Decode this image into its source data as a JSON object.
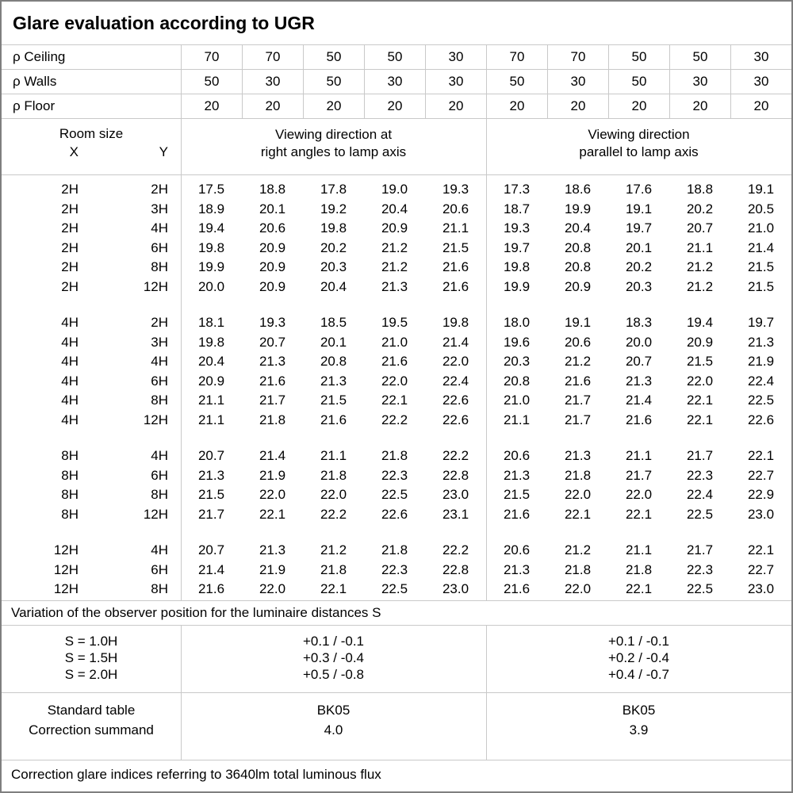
{
  "title": "Glare evaluation according to UGR",
  "reflectance_rows": [
    {
      "label": "ρ Ceiling",
      "values": [
        "70",
        "70",
        "50",
        "50",
        "30",
        "70",
        "70",
        "50",
        "50",
        "30"
      ]
    },
    {
      "label": "ρ Walls",
      "values": [
        "50",
        "30",
        "50",
        "30",
        "30",
        "50",
        "30",
        "50",
        "30",
        "30"
      ]
    },
    {
      "label": "ρ Floor",
      "values": [
        "20",
        "20",
        "20",
        "20",
        "20",
        "20",
        "20",
        "20",
        "20",
        "20"
      ]
    }
  ],
  "header": {
    "room_size_label": "Room size",
    "x_label": "X",
    "y_label": "Y",
    "left_heading_line1": "Viewing direction at",
    "left_heading_line2": "right angles to lamp axis",
    "right_heading_line1": "Viewing direction",
    "right_heading_line2": "parallel to lamp axis"
  },
  "blocks": [
    {
      "rows": [
        {
          "x": "2H",
          "y": "2H",
          "left": [
            "17.5",
            "18.8",
            "17.8",
            "19.0",
            "19.3"
          ],
          "right": [
            "17.3",
            "18.6",
            "17.6",
            "18.8",
            "19.1"
          ]
        },
        {
          "x": "2H",
          "y": "3H",
          "left": [
            "18.9",
            "20.1",
            "19.2",
            "20.4",
            "20.6"
          ],
          "right": [
            "18.7",
            "19.9",
            "19.1",
            "20.2",
            "20.5"
          ]
        },
        {
          "x": "2H",
          "y": "4H",
          "left": [
            "19.4",
            "20.6",
            "19.8",
            "20.9",
            "21.1"
          ],
          "right": [
            "19.3",
            "20.4",
            "19.7",
            "20.7",
            "21.0"
          ]
        },
        {
          "x": "2H",
          "y": "6H",
          "left": [
            "19.8",
            "20.9",
            "20.2",
            "21.2",
            "21.5"
          ],
          "right": [
            "19.7",
            "20.8",
            "20.1",
            "21.1",
            "21.4"
          ]
        },
        {
          "x": "2H",
          "y": "8H",
          "left": [
            "19.9",
            "20.9",
            "20.3",
            "21.2",
            "21.6"
          ],
          "right": [
            "19.8",
            "20.8",
            "20.2",
            "21.2",
            "21.5"
          ]
        },
        {
          "x": "2H",
          "y": "12H",
          "left": [
            "20.0",
            "20.9",
            "20.4",
            "21.3",
            "21.6"
          ],
          "right": [
            "19.9",
            "20.9",
            "20.3",
            "21.2",
            "21.5"
          ]
        }
      ]
    },
    {
      "rows": [
        {
          "x": "4H",
          "y": "2H",
          "left": [
            "18.1",
            "19.3",
            "18.5",
            "19.5",
            "19.8"
          ],
          "right": [
            "18.0",
            "19.1",
            "18.3",
            "19.4",
            "19.7"
          ]
        },
        {
          "x": "4H",
          "y": "3H",
          "left": [
            "19.8",
            "20.7",
            "20.1",
            "21.0",
            "21.4"
          ],
          "right": [
            "19.6",
            "20.6",
            "20.0",
            "20.9",
            "21.3"
          ]
        },
        {
          "x": "4H",
          "y": "4H",
          "left": [
            "20.4",
            "21.3",
            "20.8",
            "21.6",
            "22.0"
          ],
          "right": [
            "20.3",
            "21.2",
            "20.7",
            "21.5",
            "21.9"
          ]
        },
        {
          "x": "4H",
          "y": "6H",
          "left": [
            "20.9",
            "21.6",
            "21.3",
            "22.0",
            "22.4"
          ],
          "right": [
            "20.8",
            "21.6",
            "21.3",
            "22.0",
            "22.4"
          ]
        },
        {
          "x": "4H",
          "y": "8H",
          "left": [
            "21.1",
            "21.7",
            "21.5",
            "22.1",
            "22.6"
          ],
          "right": [
            "21.0",
            "21.7",
            "21.4",
            "22.1",
            "22.5"
          ]
        },
        {
          "x": "4H",
          "y": "12H",
          "left": [
            "21.1",
            "21.8",
            "21.6",
            "22.2",
            "22.6"
          ],
          "right": [
            "21.1",
            "21.7",
            "21.6",
            "22.1",
            "22.6"
          ]
        }
      ]
    },
    {
      "rows": [
        {
          "x": "8H",
          "y": "4H",
          "left": [
            "20.7",
            "21.4",
            "21.1",
            "21.8",
            "22.2"
          ],
          "right": [
            "20.6",
            "21.3",
            "21.1",
            "21.7",
            "22.1"
          ]
        },
        {
          "x": "8H",
          "y": "6H",
          "left": [
            "21.3",
            "21.9",
            "21.8",
            "22.3",
            "22.8"
          ],
          "right": [
            "21.3",
            "21.8",
            "21.7",
            "22.3",
            "22.7"
          ]
        },
        {
          "x": "8H",
          "y": "8H",
          "left": [
            "21.5",
            "22.0",
            "22.0",
            "22.5",
            "23.0"
          ],
          "right": [
            "21.5",
            "22.0",
            "22.0",
            "22.4",
            "22.9"
          ]
        },
        {
          "x": "8H",
          "y": "12H",
          "left": [
            "21.7",
            "22.1",
            "22.2",
            "22.6",
            "23.1"
          ],
          "right": [
            "21.6",
            "22.1",
            "22.1",
            "22.5",
            "23.0"
          ]
        }
      ]
    },
    {
      "rows": [
        {
          "x": "12H",
          "y": "4H",
          "left": [
            "20.7",
            "21.3",
            "21.2",
            "21.8",
            "22.2"
          ],
          "right": [
            "20.6",
            "21.2",
            "21.1",
            "21.7",
            "22.1"
          ]
        },
        {
          "x": "12H",
          "y": "6H",
          "left": [
            "21.4",
            "21.9",
            "21.8",
            "22.3",
            "22.8"
          ],
          "right": [
            "21.3",
            "21.8",
            "21.8",
            "22.3",
            "22.7"
          ]
        },
        {
          "x": "12H",
          "y": "8H",
          "left": [
            "21.6",
            "22.0",
            "22.1",
            "22.5",
            "23.0"
          ],
          "right": [
            "21.6",
            "22.0",
            "22.1",
            "22.5",
            "23.0"
          ]
        }
      ]
    }
  ],
  "variation_note": "Variation of the observer position for the luminaire distances S",
  "s_section": {
    "labels": [
      "S = 1.0H",
      "S = 1.5H",
      "S = 2.0H"
    ],
    "left": [
      "+0.1 / -0.1",
      "+0.3 / -0.4",
      "+0.5 / -0.8"
    ],
    "right": [
      "+0.1 / -0.1",
      "+0.2 / -0.4",
      "+0.4 / -0.7"
    ]
  },
  "summary": {
    "row1_label": "Standard table",
    "row2_label": "Correction summand",
    "row1_left": "BK05",
    "row2_left": "4.0",
    "row1_right": "BK05",
    "row2_right": "3.9"
  },
  "footer_note": "Correction glare indices referring to 3640lm total luminous flux",
  "colors": {
    "background": "#ffffff",
    "text": "#000000",
    "border_inner": "#c9c9c9",
    "border_outer": "#7f7f7f"
  }
}
